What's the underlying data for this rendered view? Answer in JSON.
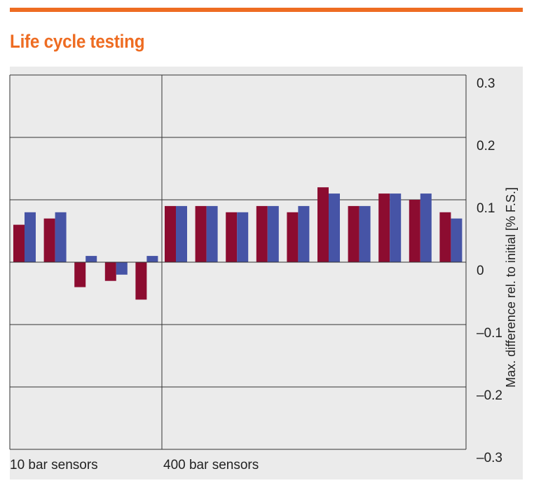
{
  "colors": {
    "accent": "#ee6c22",
    "series_a": "#8c0c30",
    "series_b": "#4654a6",
    "plot_bg": "#ebebeb",
    "grid": "#333333"
  },
  "chart_data": {
    "type": "bar",
    "title": "Life cycle testing",
    "ylabel": "Max. difference rel. to initial [% F.S.]",
    "ylim": [
      -0.3,
      0.3
    ],
    "yticks": [
      "0.3",
      "0.2",
      "0.1",
      "0",
      "–0.1",
      "–0.2",
      "–0.3"
    ],
    "ytick_values": [
      0.3,
      0.2,
      0.1,
      0,
      -0.1,
      -0.2,
      -0.3
    ],
    "grid": true,
    "groups": [
      {
        "label": "10 bar sensors",
        "pairs": [
          [
            0.06,
            0.08
          ],
          [
            0.07,
            0.08
          ],
          [
            -0.04,
            0.01
          ],
          [
            -0.03,
            -0.02
          ],
          [
            -0.06,
            0.01
          ]
        ]
      },
      {
        "label": "400 bar sensors",
        "pairs": [
          [
            0.09,
            0.09
          ],
          [
            0.09,
            0.09
          ],
          [
            0.08,
            0.08
          ],
          [
            0.09,
            0.09
          ],
          [
            0.08,
            0.09
          ],
          [
            0.12,
            0.11
          ],
          [
            0.09,
            0.09
          ],
          [
            0.11,
            0.11
          ],
          [
            0.1,
            0.11
          ],
          [
            0.08,
            0.07
          ]
        ]
      }
    ]
  }
}
